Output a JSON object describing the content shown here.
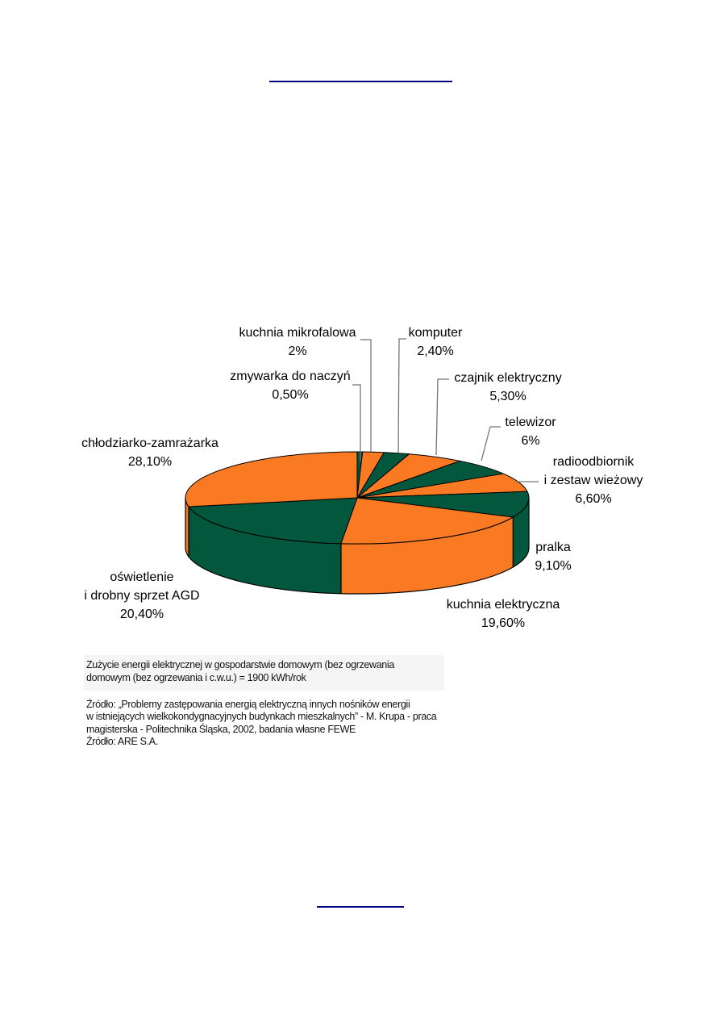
{
  "page": {
    "rule_color": "#000080",
    "background": "#ffffff"
  },
  "chart_data": {
    "type": "pie",
    "style": "3d",
    "unit": "%",
    "start_position": "12-oclock",
    "direction": "clockwise",
    "title": "",
    "legend": "none",
    "categories": [
      "zmywarka do naczyń",
      "kuchnia mikrofalowa",
      "komputer",
      "czajnik elektryczny",
      "telewizor",
      "radioodbiornik i zestaw wieżowy",
      "pralka",
      "kuchnia elektryczna",
      "oświetlenie i drobny sprzet AGD",
      "chłodziarko-zamrażarka"
    ],
    "values": [
      0.5,
      2,
      2.4,
      5.3,
      6,
      6.6,
      9.1,
      19.6,
      20.4,
      28.1
    ],
    "palette": {
      "green": "#02573D",
      "orange": "#FA7A24"
    },
    "slices": [
      {
        "label_lines": [
          "zmywarka do naczyń"
        ],
        "value": 0.5,
        "value_label": "0,50%",
        "color": "#02573D"
      },
      {
        "label_lines": [
          "kuchnia mikrofalowa"
        ],
        "value": 2,
        "value_label": "2%",
        "color": "#FA7A24"
      },
      {
        "label_lines": [
          "komputer"
        ],
        "value": 2.4,
        "value_label": "2,40%",
        "color": "#02573D"
      },
      {
        "label_lines": [
          "czajnik elektryczny"
        ],
        "value": 5.3,
        "value_label": "5,30%",
        "color": "#FA7A24"
      },
      {
        "label_lines": [
          "telewizor"
        ],
        "value": 6,
        "value_label": "6%",
        "color": "#02573D"
      },
      {
        "label_lines": [
          "radioodbiornik",
          "i zestaw wieżowy"
        ],
        "value": 6.6,
        "value_label": "6,60%",
        "color": "#FA7A24"
      },
      {
        "label_lines": [
          "pralka"
        ],
        "value": 9.1,
        "value_label": "9,10%",
        "color": "#02573D"
      },
      {
        "label_lines": [
          "kuchnia elektryczna"
        ],
        "value": 19.6,
        "value_label": "19,60%",
        "color": "#FA7A24"
      },
      {
        "label_lines": [
          "oświetlenie",
          "i drobny sprzet AGD"
        ],
        "value": 20.4,
        "value_label": "20,40%",
        "color": "#02573D"
      },
      {
        "label_lines": [
          "chłodziarko-zamrażarka"
        ],
        "value": 28.1,
        "value_label": "28,10%",
        "color": "#FA7A24"
      }
    ]
  },
  "caption": {
    "line1": "Zużycie energii elektrycznej w gospodarstwie domowym (bez ogrzewania",
    "line2": "domowym (bez ogrzewania i c.w.u.) = 1900 kWh/rok"
  },
  "source": {
    "line1": "Źródło: „Problemy zastępowania energią elektryczną innych nośników energii",
    "line2": "w istniejących wielkokondygnacyjnych budynkach mieszkalnych” - M. Krupa - praca",
    "line3": "magisterska - Politechnika Śląska, 2002, badania własne FEWE",
    "line4": "Źródło: ARE S.A."
  }
}
